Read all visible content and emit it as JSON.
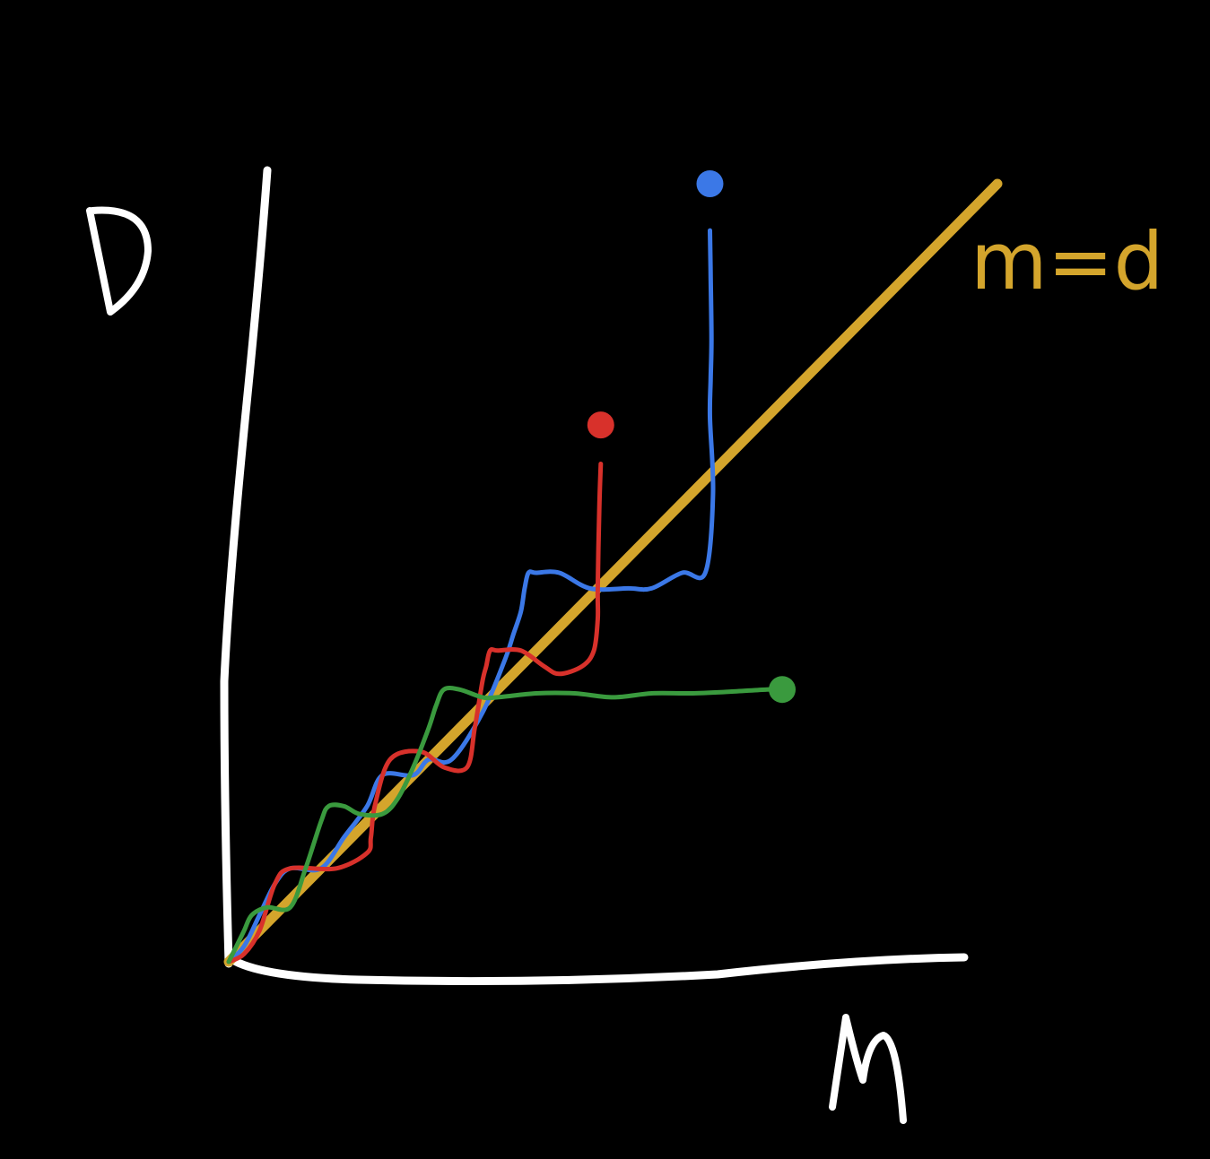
{
  "chart_data": {
    "type": "line",
    "title": "",
    "xlabel": "M",
    "ylabel": "D",
    "xlim": [
      0,
      100
    ],
    "ylim": [
      0,
      100
    ],
    "grid": false,
    "reference_line": {
      "label": "m=d",
      "color": "#d4a52c",
      "x": [
        0,
        100
      ],
      "y": [
        0,
        100
      ]
    },
    "series": [
      {
        "color": "#3b78e7",
        "x": [
          0,
          2,
          4,
          6,
          8,
          12,
          15,
          18,
          20,
          24,
          26,
          29,
          33,
          36,
          37,
          38,
          38.5,
          39,
          40,
          43,
          47,
          52,
          55,
          59,
          62,
          63,
          62.6,
          62.7,
          62.8,
          62.7,
          62.6
        ],
        "y": [
          0,
          2,
          6,
          10,
          12,
          12,
          16,
          20,
          24,
          24,
          26,
          26,
          32,
          39,
          42,
          45,
          48,
          50,
          50,
          50,
          48,
          48,
          48,
          50,
          50,
          60,
          70,
          75,
          80,
          88,
          94
        ],
        "endpoint": [
          62.6,
          100
        ]
      },
      {
        "color": "#d8312b",
        "x": [
          0,
          2,
          4,
          6,
          8,
          14,
          18,
          18.5,
          19,
          21,
          25,
          28,
          31,
          32,
          33,
          33.5,
          34,
          35,
          38,
          41,
          43,
          46,
          47.5,
          48,
          48,
          48.2,
          48.4
        ],
        "y": [
          0,
          1,
          4,
          10,
          12,
          12,
          14,
          16,
          20,
          26,
          27,
          25,
          25,
          30,
          36,
          38,
          40,
          40,
          40,
          38,
          37,
          38,
          40,
          44,
          48,
          58,
          64
        ],
        "endpoint": [
          48.4,
          69
        ]
      },
      {
        "color": "#3a9a3e",
        "x": [
          0,
          1,
          2,
          3,
          5,
          8,
          10,
          12,
          13,
          15,
          17,
          20,
          22,
          24,
          26,
          27,
          28,
          30,
          33,
          35,
          40,
          45,
          50,
          55,
          60,
          65,
          70,
          72
        ],
        "y": [
          0,
          2,
          4,
          6,
          7,
          7,
          12,
          18,
          20,
          20,
          19,
          19,
          21,
          25,
          30,
          33,
          35,
          35,
          34,
          34,
          34.5,
          34.5,
          34,
          34.5,
          34.5,
          34.7,
          35,
          35
        ],
        "endpoint": [
          72,
          35
        ]
      }
    ]
  }
}
